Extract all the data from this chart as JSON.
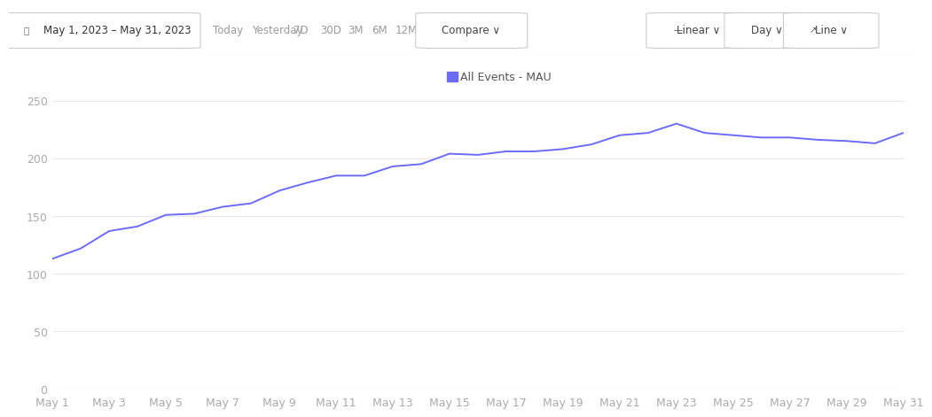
{
  "x_labels": [
    "May 1",
    "May 3",
    "May 5",
    "May 7",
    "May 9",
    "May 11",
    "May 13",
    "May 15",
    "May 17",
    "May 19",
    "May 21",
    "May 23",
    "May 25",
    "May 27",
    "May 29",
    "May 31"
  ],
  "x_tick_days": [
    1,
    3,
    5,
    7,
    9,
    11,
    13,
    15,
    17,
    19,
    21,
    23,
    25,
    27,
    29,
    31
  ],
  "x_days": [
    1,
    2,
    3,
    4,
    5,
    6,
    7,
    8,
    9,
    10,
    11,
    12,
    13,
    14,
    15,
    16,
    17,
    18,
    19,
    20,
    21,
    22,
    23,
    24,
    25,
    26,
    27,
    28,
    29,
    30,
    31
  ],
  "y_values": [
    113,
    122,
    137,
    141,
    151,
    152,
    158,
    161,
    172,
    179,
    185,
    185,
    193,
    195,
    204,
    203,
    206,
    206,
    208,
    212,
    220,
    222,
    230,
    222,
    220,
    218,
    218,
    216,
    215,
    213,
    222
  ],
  "line_color": "#6B6BF5",
  "legend_label": "All Events - MAU",
  "legend_color": "#6B6BF5",
  "yticks": [
    0,
    50,
    100,
    150,
    200,
    250
  ],
  "ylim": [
    0,
    265
  ],
  "xlim": [
    1,
    31
  ],
  "background_color": "#ffffff",
  "grid_color": "#e8e8ee",
  "label_color": "#aaaaaa",
  "header_date_text": "May 1, 2023 – May 31, 2023",
  "nav_buttons": [
    "Today",
    "Yesterday",
    "7D",
    "30D",
    "3M",
    "6M",
    "12M"
  ],
  "compare_text": "Compare ∨",
  "right_buttons": [
    "Linear ∨",
    "Day ∨",
    "Line ∨"
  ]
}
